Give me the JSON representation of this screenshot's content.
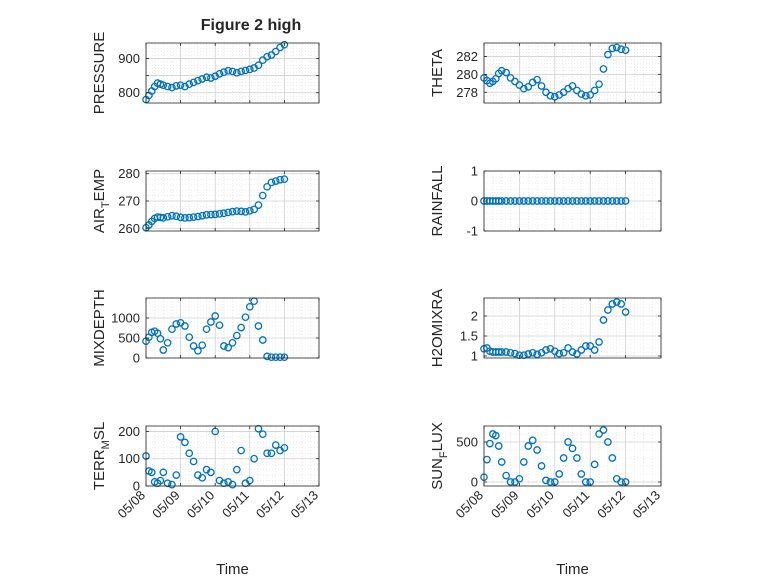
{
  "figure": {
    "title": "Figure 2 high",
    "marker_color": "#0072bd",
    "axis_color": "#262626",
    "grid_color": "#dfdfdf",
    "background": "#ffffff"
  },
  "chart_data": [
    {
      "type": "scatter",
      "title": "Figure 2 high",
      "ylabel": "PRESSURE",
      "xlabel": "",
      "xlim": [
        "05/08",
        "05/13"
      ],
      "xticks": [
        "05/08",
        "05/09",
        "05/10",
        "05/11",
        "05/12",
        "05/13"
      ],
      "show_xticklabels": false,
      "ylim": [
        770,
        945
      ],
      "yticks": [
        800,
        850,
        900
      ],
      "yticklabels": [
        "800",
        "",
        "900"
      ],
      "grid": true,
      "minor_grid": true,
      "marker": "open-circle",
      "x": [
        "05/08 00:00",
        "05/08 02:00",
        "05/08 04:00",
        "05/08 06:00",
        "05/08 08:00",
        "05/08 10:00",
        "05/08 12:00",
        "05/08 15:00",
        "05/08 18:00",
        "05/08 21:00",
        "05/09 00:00",
        "05/09 03:00",
        "05/09 06:00",
        "05/09 09:00",
        "05/09 12:00",
        "05/09 15:00",
        "05/09 18:00",
        "05/09 21:00",
        "05/10 00:00",
        "05/10 03:00",
        "05/10 06:00",
        "05/10 09:00",
        "05/10 12:00",
        "05/10 15:00",
        "05/10 18:00",
        "05/10 21:00",
        "05/11 00:00",
        "05/11 03:00",
        "05/11 06:00",
        "05/11 09:00",
        "05/11 12:00",
        "05/11 15:00",
        "05/11 18:00",
        "05/11 21:00",
        "05/12 00:00"
      ],
      "values": [
        780,
        792,
        805,
        818,
        828,
        825,
        822,
        818,
        815,
        820,
        822,
        818,
        825,
        830,
        835,
        840,
        845,
        843,
        848,
        855,
        860,
        864,
        862,
        858,
        862,
        865,
        868,
        872,
        880,
        895,
        905,
        910,
        920,
        932,
        940
      ]
    },
    {
      "type": "scatter",
      "ylabel": "THETA",
      "xlabel": "",
      "xlim": [
        "05/08",
        "05/13"
      ],
      "xticks": [
        "05/08",
        "05/09",
        "05/10",
        "05/11",
        "05/12",
        "05/13"
      ],
      "show_xticklabels": false,
      "ylim": [
        276.8,
        283.5
      ],
      "yticks": [
        278,
        280,
        282
      ],
      "grid": true,
      "minor_grid": true,
      "marker": "open-circle",
      "x": [
        "05/08 00:00",
        "05/08 02:00",
        "05/08 04:00",
        "05/08 06:00",
        "05/08 08:00",
        "05/08 10:00",
        "05/08 12:00",
        "05/08 15:00",
        "05/08 18:00",
        "05/08 21:00",
        "05/09 00:00",
        "05/09 03:00",
        "05/09 06:00",
        "05/09 09:00",
        "05/09 12:00",
        "05/09 15:00",
        "05/09 18:00",
        "05/09 21:00",
        "05/10 00:00",
        "05/10 03:00",
        "05/10 06:00",
        "05/10 09:00",
        "05/10 12:00",
        "05/10 15:00",
        "05/10 18:00",
        "05/10 21:00",
        "05/11 00:00",
        "05/11 03:00",
        "05/11 06:00",
        "05/11 09:00",
        "05/11 12:00",
        "05/11 15:00",
        "05/11 18:00",
        "05/11 21:00",
        "05/12 00:00"
      ],
      "values": [
        279.6,
        279.3,
        279.0,
        279.2,
        279.5,
        280.1,
        280.4,
        280.2,
        279.6,
        279.2,
        278.8,
        278.4,
        278.6,
        279.1,
        279.4,
        278.7,
        278.0,
        277.6,
        277.5,
        277.7,
        278.0,
        278.4,
        278.7,
        278.2,
        277.8,
        277.6,
        277.7,
        278.2,
        278.9,
        280.6,
        282.2,
        282.9,
        283.0,
        282.8,
        282.7
      ]
    },
    {
      "type": "scatter",
      "ylabel": "AIR_TEMP",
      "ylabel_display": {
        "base": "AIR",
        "subscript": "T",
        "rest": "EMP"
      },
      "xlabel": "",
      "xlim": [
        "05/08",
        "05/13"
      ],
      "xticks": [
        "05/08",
        "05/09",
        "05/10",
        "05/11",
        "05/12",
        "05/13"
      ],
      "show_xticklabels": false,
      "ylim": [
        259,
        281
      ],
      "yticks": [
        260,
        270,
        280
      ],
      "grid": true,
      "minor_grid": true,
      "marker": "open-circle",
      "x": [
        "05/08 00:00",
        "05/08 02:00",
        "05/08 04:00",
        "05/08 06:00",
        "05/08 08:00",
        "05/08 10:00",
        "05/08 12:00",
        "05/08 15:00",
        "05/08 18:00",
        "05/08 21:00",
        "05/09 00:00",
        "05/09 03:00",
        "05/09 06:00",
        "05/09 09:00",
        "05/09 12:00",
        "05/09 15:00",
        "05/09 18:00",
        "05/09 21:00",
        "05/10 00:00",
        "05/10 03:00",
        "05/10 06:00",
        "05/10 09:00",
        "05/10 12:00",
        "05/10 15:00",
        "05/10 18:00",
        "05/10 21:00",
        "05/11 00:00",
        "05/11 03:00",
        "05/11 06:00",
        "05/11 09:00",
        "05/11 12:00",
        "05/11 15:00",
        "05/11 18:00",
        "05/11 21:00",
        "05/12 00:00"
      ],
      "values": [
        260.2,
        261.2,
        262.5,
        263.6,
        264.1,
        264.0,
        263.8,
        264.2,
        264.6,
        264.4,
        264.0,
        263.8,
        263.9,
        264.1,
        264.3,
        264.6,
        264.9,
        265.0,
        265.1,
        265.3,
        265.5,
        265.8,
        266.1,
        266.3,
        266.2,
        266.0,
        266.4,
        266.9,
        268.5,
        272.0,
        275.2,
        276.8,
        277.3,
        277.8,
        278.0
      ]
    },
    {
      "type": "scatter",
      "ylabel": "RAINFALL",
      "xlabel": "",
      "xlim": [
        "05/08",
        "05/13"
      ],
      "xticks": [
        "05/08",
        "05/09",
        "05/10",
        "05/11",
        "05/12",
        "05/13"
      ],
      "show_xticklabels": false,
      "ylim": [
        -1,
        1
      ],
      "yticks": [
        -1,
        0,
        1
      ],
      "grid": true,
      "minor_grid": true,
      "marker": "open-circle",
      "x": [
        "05/08 00:00",
        "05/08 02:00",
        "05/08 04:00",
        "05/08 06:00",
        "05/08 08:00",
        "05/08 10:00",
        "05/08 12:00",
        "05/08 15:00",
        "05/08 18:00",
        "05/08 21:00",
        "05/09 00:00",
        "05/09 03:00",
        "05/09 06:00",
        "05/09 09:00",
        "05/09 12:00",
        "05/09 15:00",
        "05/09 18:00",
        "05/09 21:00",
        "05/10 00:00",
        "05/10 03:00",
        "05/10 06:00",
        "05/10 09:00",
        "05/10 12:00",
        "05/10 15:00",
        "05/10 18:00",
        "05/10 21:00",
        "05/11 00:00",
        "05/11 03:00",
        "05/11 06:00",
        "05/11 09:00",
        "05/11 12:00",
        "05/11 15:00",
        "05/11 18:00",
        "05/11 21:00",
        "05/12 00:00"
      ],
      "values": [
        0,
        0,
        0,
        0,
        0,
        0,
        0,
        0,
        0,
        0,
        0,
        0,
        0,
        0,
        0,
        0,
        0,
        0,
        0,
        0,
        0,
        0,
        0,
        0,
        0,
        0,
        0,
        0,
        0,
        0,
        0,
        0,
        0,
        0,
        0
      ]
    },
    {
      "type": "scatter",
      "ylabel": "MIXDEPTH",
      "xlabel": "",
      "xlim": [
        "05/08",
        "05/13"
      ],
      "xticks": [
        "05/08",
        "05/09",
        "05/10",
        "05/11",
        "05/12",
        "05/13"
      ],
      "show_xticklabels": false,
      "ylim": [
        0,
        1500
      ],
      "yticks": [
        0,
        500,
        1000
      ],
      "grid": true,
      "minor_grid": true,
      "marker": "open-circle",
      "x": [
        "05/08 00:00",
        "05/08 02:00",
        "05/08 04:00",
        "05/08 06:00",
        "05/08 08:00",
        "05/08 10:00",
        "05/08 12:00",
        "05/08 15:00",
        "05/08 18:00",
        "05/08 21:00",
        "05/09 00:00",
        "05/09 03:00",
        "05/09 06:00",
        "05/09 09:00",
        "05/09 12:00",
        "05/09 15:00",
        "05/09 18:00",
        "05/09 21:00",
        "05/10 00:00",
        "05/10 03:00",
        "05/10 06:00",
        "05/10 09:00",
        "05/10 12:00",
        "05/10 15:00",
        "05/10 18:00",
        "05/10 21:00",
        "05/11 00:00",
        "05/11 03:00",
        "05/11 06:00",
        "05/11 09:00",
        "05/11 12:00",
        "05/11 15:00",
        "05/11 18:00",
        "05/11 21:00",
        "05/12 00:00"
      ],
      "values": [
        420,
        520,
        640,
        670,
        620,
        480,
        200,
        380,
        720,
        850,
        880,
        800,
        520,
        300,
        180,
        320,
        720,
        900,
        1050,
        820,
        300,
        260,
        380,
        560,
        760,
        1020,
        1280,
        1420,
        800,
        450,
        40,
        20,
        20,
        20,
        20
      ]
    },
    {
      "type": "scatter",
      "ylabel": "H2OMIXRA",
      "xlabel": "",
      "xlim": [
        "05/08",
        "05/13"
      ],
      "xticks": [
        "05/08",
        "05/09",
        "05/10",
        "05/11",
        "05/12",
        "05/13"
      ],
      "show_xticklabels": false,
      "ylim": [
        0.95,
        2.45
      ],
      "yticks": [
        1,
        1.5,
        2
      ],
      "grid": true,
      "minor_grid": true,
      "marker": "open-circle",
      "x": [
        "05/08 00:00",
        "05/08 02:00",
        "05/08 04:00",
        "05/08 06:00",
        "05/08 08:00",
        "05/08 10:00",
        "05/08 12:00",
        "05/08 15:00",
        "05/08 18:00",
        "05/08 21:00",
        "05/09 00:00",
        "05/09 03:00",
        "05/09 06:00",
        "05/09 09:00",
        "05/09 12:00",
        "05/09 15:00",
        "05/09 18:00",
        "05/09 21:00",
        "05/10 00:00",
        "05/10 03:00",
        "05/10 06:00",
        "05/10 09:00",
        "05/10 12:00",
        "05/10 15:00",
        "05/10 18:00",
        "05/10 21:00",
        "05/11 00:00",
        "05/11 03:00",
        "05/11 06:00",
        "05/11 09:00",
        "05/11 12:00",
        "05/11 15:00",
        "05/11 18:00",
        "05/11 21:00",
        "05/12 00:00"
      ],
      "values": [
        1.18,
        1.2,
        1.12,
        1.1,
        1.1,
        1.1,
        1.1,
        1.1,
        1.08,
        1.06,
        1.02,
        1.02,
        1.05,
        1.08,
        1.04,
        1.08,
        1.15,
        1.18,
        1.12,
        1.06,
        1.08,
        1.2,
        1.1,
        1.05,
        1.15,
        1.25,
        1.25,
        1.15,
        1.35,
        1.9,
        2.15,
        2.3,
        2.35,
        2.3,
        2.1
      ]
    },
    {
      "type": "scatter",
      "ylabel": "TERR_MSL",
      "ylabel_display": {
        "base": "TERR",
        "subscript": "M",
        "rest": "SL"
      },
      "xlabel": "Time",
      "xlim": [
        "05/08",
        "05/13"
      ],
      "xticks": [
        "05/08",
        "05/09",
        "05/10",
        "05/11",
        "05/12",
        "05/13"
      ],
      "show_xticklabels": true,
      "ylim": [
        0,
        220
      ],
      "yticks": [
        0,
        100,
        200
      ],
      "grid": true,
      "minor_grid": true,
      "marker": "open-circle",
      "x": [
        "05/08 00:00",
        "05/08 02:00",
        "05/08 04:00",
        "05/08 06:00",
        "05/08 08:00",
        "05/08 10:00",
        "05/08 12:00",
        "05/08 15:00",
        "05/08 18:00",
        "05/08 21:00",
        "05/09 00:00",
        "05/09 03:00",
        "05/09 06:00",
        "05/09 09:00",
        "05/09 12:00",
        "05/09 15:00",
        "05/09 18:00",
        "05/09 21:00",
        "05/10 00:00",
        "05/10 03:00",
        "05/10 06:00",
        "05/10 09:00",
        "05/10 12:00",
        "05/10 15:00",
        "05/10 18:00",
        "05/10 21:00",
        "05/11 00:00",
        "05/11 03:00",
        "05/11 06:00",
        "05/11 09:00",
        "05/11 12:00",
        "05/11 15:00",
        "05/11 18:00",
        "05/11 21:00",
        "05/12 00:00"
      ],
      "values": [
        110,
        55,
        50,
        15,
        10,
        20,
        50,
        10,
        5,
        40,
        180,
        160,
        120,
        90,
        40,
        30,
        60,
        50,
        200,
        20,
        10,
        15,
        5,
        60,
        130,
        10,
        20,
        100,
        210,
        190,
        120,
        120,
        150,
        130,
        140
      ]
    },
    {
      "type": "scatter",
      "ylabel": "SUN_FLUX",
      "ylabel_display": {
        "base": "SUN",
        "subscript": "F",
        "rest": "LUX"
      },
      "xlabel": "Time",
      "xlim": [
        "05/08",
        "05/13"
      ],
      "xticks": [
        "05/08",
        "05/09",
        "05/10",
        "05/11",
        "05/12",
        "05/13"
      ],
      "show_xticklabels": true,
      "ylim": [
        -50,
        700
      ],
      "yticks": [
        0,
        500
      ],
      "grid": true,
      "minor_grid": true,
      "marker": "open-circle",
      "x": [
        "05/08 00:00",
        "05/08 02:00",
        "05/08 04:00",
        "05/08 06:00",
        "05/08 08:00",
        "05/08 10:00",
        "05/08 12:00",
        "05/08 15:00",
        "05/08 18:00",
        "05/08 21:00",
        "05/09 00:00",
        "05/09 03:00",
        "05/09 06:00",
        "05/09 09:00",
        "05/09 12:00",
        "05/09 15:00",
        "05/09 18:00",
        "05/09 21:00",
        "05/10 00:00",
        "05/10 03:00",
        "05/10 06:00",
        "05/10 09:00",
        "05/10 12:00",
        "05/10 15:00",
        "05/10 18:00",
        "05/10 21:00",
        "05/11 00:00",
        "05/11 03:00",
        "05/11 06:00",
        "05/11 09:00",
        "05/11 12:00",
        "05/11 15:00",
        "05/11 18:00",
        "05/11 21:00",
        "05/12 00:00"
      ],
      "values": [
        60,
        280,
        480,
        600,
        580,
        450,
        250,
        80,
        0,
        0,
        40,
        250,
        450,
        520,
        400,
        200,
        20,
        0,
        0,
        100,
        300,
        500,
        420,
        300,
        100,
        0,
        0,
        220,
        600,
        650,
        500,
        300,
        40,
        0,
        0
      ]
    }
  ]
}
